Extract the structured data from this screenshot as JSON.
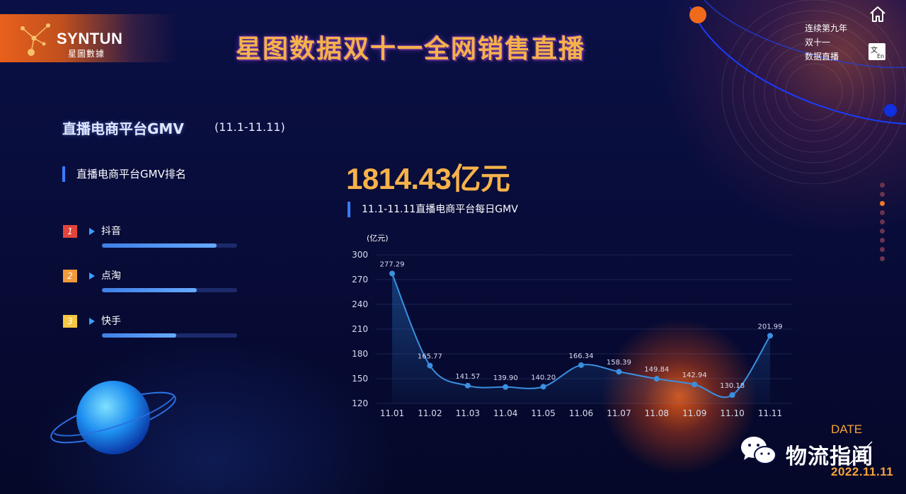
{
  "header": {
    "logo_en": "SYNTUN",
    "logo_cn": "星圖數據",
    "main_title": "星图数据双十一全网销售直播",
    "side_caption": [
      "连续第九年",
      "双十一",
      "数据直播"
    ]
  },
  "section": {
    "title": "直播电商平台GMV",
    "range": "(11.1-11.11)"
  },
  "ranking": {
    "title": "直播电商平台GMV排名",
    "items": [
      {
        "rank": "1",
        "name": "抖音",
        "fill": 0.85,
        "badge_color": "#e2453c"
      },
      {
        "rank": "2",
        "name": "点淘",
        "fill": 0.7,
        "badge_color": "#f29a3a"
      },
      {
        "rank": "3",
        "name": "快手",
        "fill": 0.55,
        "badge_color": "#f5c842"
      }
    ]
  },
  "total": {
    "value": "1814.43亿元"
  },
  "chart_data": {
    "type": "area",
    "title": "11.1-11.11直播电商平台每日GMV",
    "ylabel": "(亿元)",
    "xlabel": "",
    "categories": [
      "11.01",
      "11.02",
      "11.03",
      "11.04",
      "11.05",
      "11.06",
      "11.07",
      "11.08",
      "11.09",
      "11.10",
      "11.11"
    ],
    "values": [
      277.29,
      165.77,
      141.57,
      139.9,
      140.2,
      166.34,
      158.39,
      149.84,
      142.94,
      130.18,
      201.99
    ],
    "data_labels": [
      "277.29",
      "165.77",
      "141.57",
      "139.90",
      "140.20",
      "166.34",
      "158.39",
      "149.84",
      "142.94",
      "130.18",
      "201.99"
    ],
    "ylim": [
      120,
      300
    ],
    "yticks": [
      120,
      150,
      180,
      210,
      240,
      270,
      300
    ],
    "grid": true,
    "line_color": "#3a8fe0"
  },
  "footer": {
    "date_label": "DATE",
    "date_value": "2022.11.11",
    "wechat_name": "物流指闻"
  },
  "colors": {
    "accent": "#f6b24a",
    "blue_marker": "#3a7bff",
    "orbit_dot_orange": "#f06a1c",
    "orbit_dot_blue": "#1030e0"
  },
  "icons": {
    "home": "home-icon",
    "translate": "translate-icon",
    "wechat": "wechat-icon"
  },
  "pager": {
    "count": 9,
    "active": 2
  }
}
